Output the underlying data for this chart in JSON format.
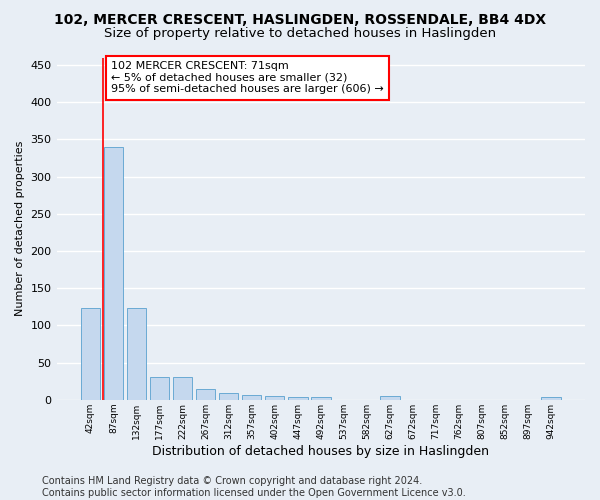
{
  "title": "102, MERCER CRESCENT, HASLINGDEN, ROSSENDALE, BB4 4DX",
  "subtitle": "Size of property relative to detached houses in Haslingden",
  "xlabel": "Distribution of detached houses by size in Haslingden",
  "ylabel": "Number of detached properties",
  "bar_color": "#c5d8ee",
  "bar_edge_color": "#6aaad4",
  "categories": [
    "42sqm",
    "87sqm",
    "132sqm",
    "177sqm",
    "222sqm",
    "267sqm",
    "312sqm",
    "357sqm",
    "402sqm",
    "447sqm",
    "492sqm",
    "537sqm",
    "582sqm",
    "627sqm",
    "672sqm",
    "717sqm",
    "762sqm",
    "807sqm",
    "852sqm",
    "897sqm",
    "942sqm"
  ],
  "values": [
    123,
    340,
    123,
    30,
    30,
    15,
    9,
    6,
    5,
    4,
    4,
    0,
    0,
    5,
    0,
    0,
    0,
    0,
    0,
    0,
    4
  ],
  "annotation_line1": "102 MERCER CRESCENT: 71sqm",
  "annotation_line2": "← 5% of detached houses are smaller (32)",
  "annotation_line3": "95% of semi-detached houses are larger (606) →",
  "vline_x": 0.57,
  "ylim": [
    0,
    460
  ],
  "yticks": [
    0,
    50,
    100,
    150,
    200,
    250,
    300,
    350,
    400,
    450
  ],
  "footer_line1": "Contains HM Land Registry data © Crown copyright and database right 2024.",
  "footer_line2": "Contains public sector information licensed under the Open Government Licence v3.0.",
  "background_color": "#e8eef5",
  "plot_background": "#e8eef5",
  "grid_color": "#ffffff",
  "title_fontsize": 10,
  "subtitle_fontsize": 9.5,
  "annotation_fontsize": 8,
  "footer_fontsize": 7,
  "ylabel_fontsize": 8,
  "xlabel_fontsize": 9
}
